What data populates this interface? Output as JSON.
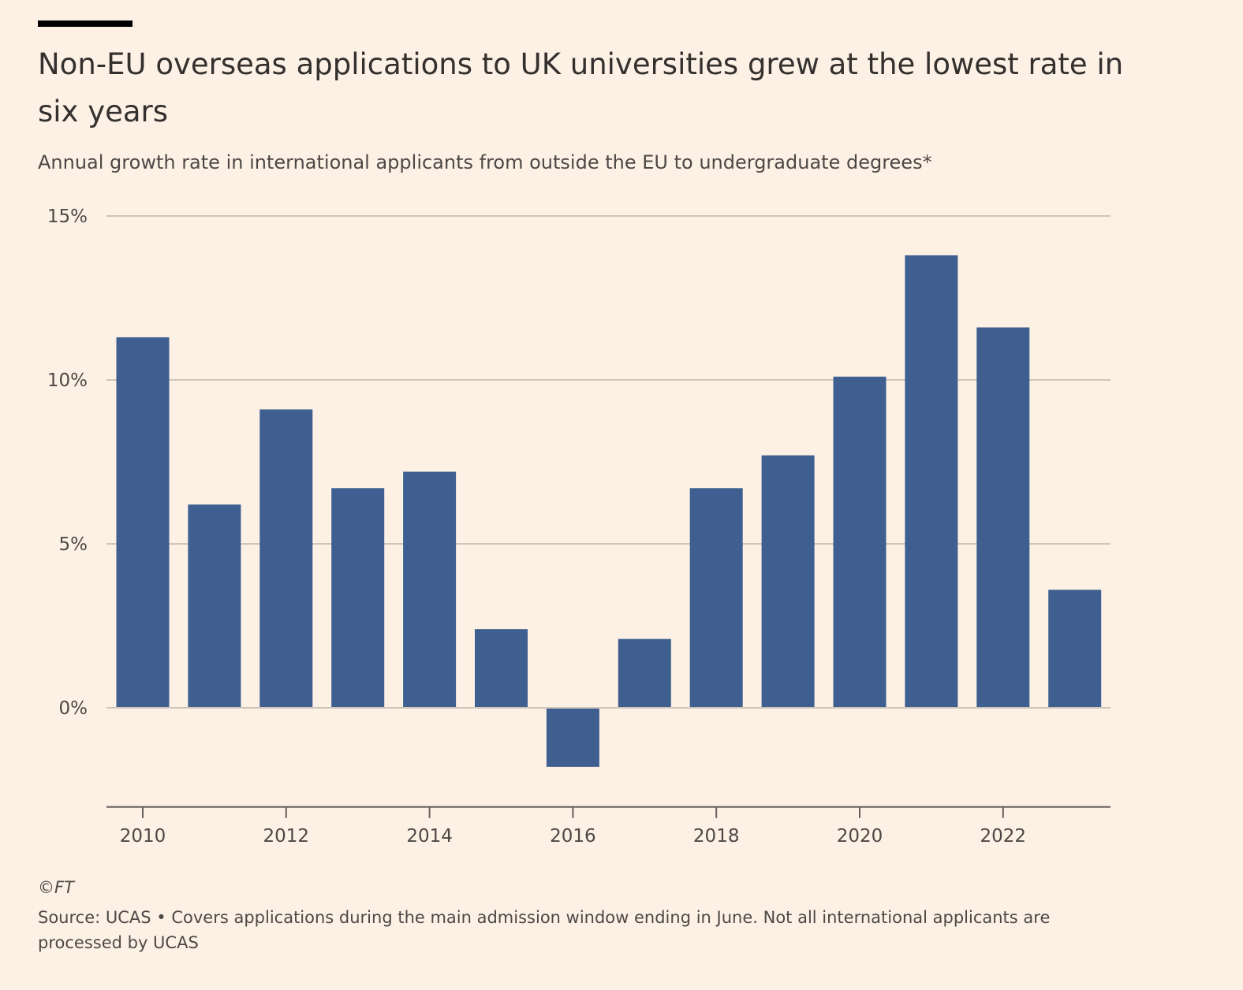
{
  "header": {
    "title": "Non-EU overseas applications to UK universities grew at the lowest rate in six years",
    "subtitle": "Annual growth rate in international applicants from outside the EU to undergraduate degrees*"
  },
  "footer": {
    "credit": "©FT",
    "source": "Source: UCAS • Covers applications during the main admission window ending in June. Not all international applicants are processed by UCAS"
  },
  "colors": {
    "bar": "#3E5F8F",
    "grid": "#CEC6B9",
    "axis": "#66605C",
    "topbar": "#000000"
  },
  "chart_data": {
    "type": "bar",
    "categories": [
      "2010",
      "2011",
      "2012",
      "2013",
      "2014",
      "2015",
      "2016",
      "2017",
      "2018",
      "2019",
      "2020",
      "2021",
      "2022",
      "2023"
    ],
    "values": [
      11.3,
      6.2,
      9.1,
      6.7,
      7.2,
      2.4,
      -1.8,
      2.1,
      6.7,
      7.7,
      10.1,
      13.8,
      11.6,
      3.6
    ],
    "x_tick_labels": [
      "2010",
      "2012",
      "2014",
      "2016",
      "2018",
      "2020",
      "2022"
    ],
    "y_ticks": [
      0,
      5,
      10,
      15
    ],
    "y_tick_labels": [
      "0%",
      "5%",
      "10%",
      "15%"
    ],
    "ylim": [
      -3,
      15
    ],
    "unit": "%",
    "grid": true,
    "legend": "none"
  }
}
